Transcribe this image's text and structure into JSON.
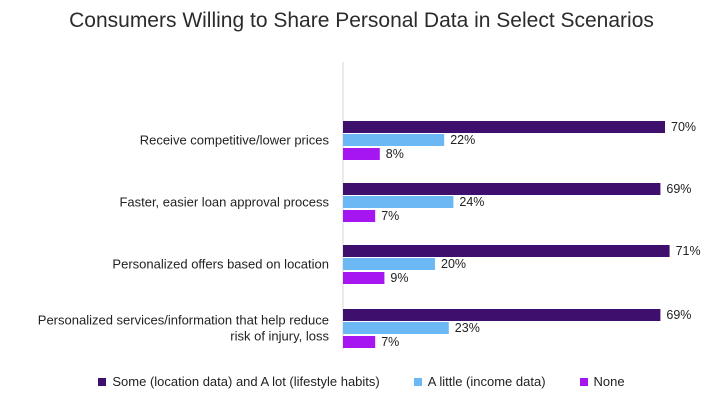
{
  "chart_data": {
    "type": "bar",
    "orientation": "horizontal",
    "title": "Consumers Willing to Share Personal Data in Select Scenarios",
    "categories": [
      [
        "Receive competitive/lower prices"
      ],
      [
        "Faster, easier loan approval process"
      ],
      [
        "Personalized offers based on location"
      ],
      [
        "Personalized services/information that help reduce",
        "risk of injury, loss"
      ]
    ],
    "series": [
      {
        "name": "Some (location data) and A lot (lifestyle habits)",
        "values": [
          70,
          69,
          71,
          69
        ],
        "labels": [
          "70%",
          "69%",
          "71%",
          "69%"
        ],
        "color": "#3f0f6e"
      },
      {
        "name": "A little (income data)",
        "values": [
          22,
          24,
          20,
          23
        ],
        "labels": [
          "22%",
          "24%",
          "20%",
          "23%"
        ],
        "color": "#6cb8f5"
      },
      {
        "name": "None",
        "values": [
          8,
          7,
          9,
          7
        ],
        "labels": [
          "8%",
          "7%",
          "9%",
          "7%"
        ],
        "color": "#a516f0"
      }
    ],
    "xlim": [
      0,
      75
    ],
    "legend_position": "bottom",
    "grid": false
  }
}
